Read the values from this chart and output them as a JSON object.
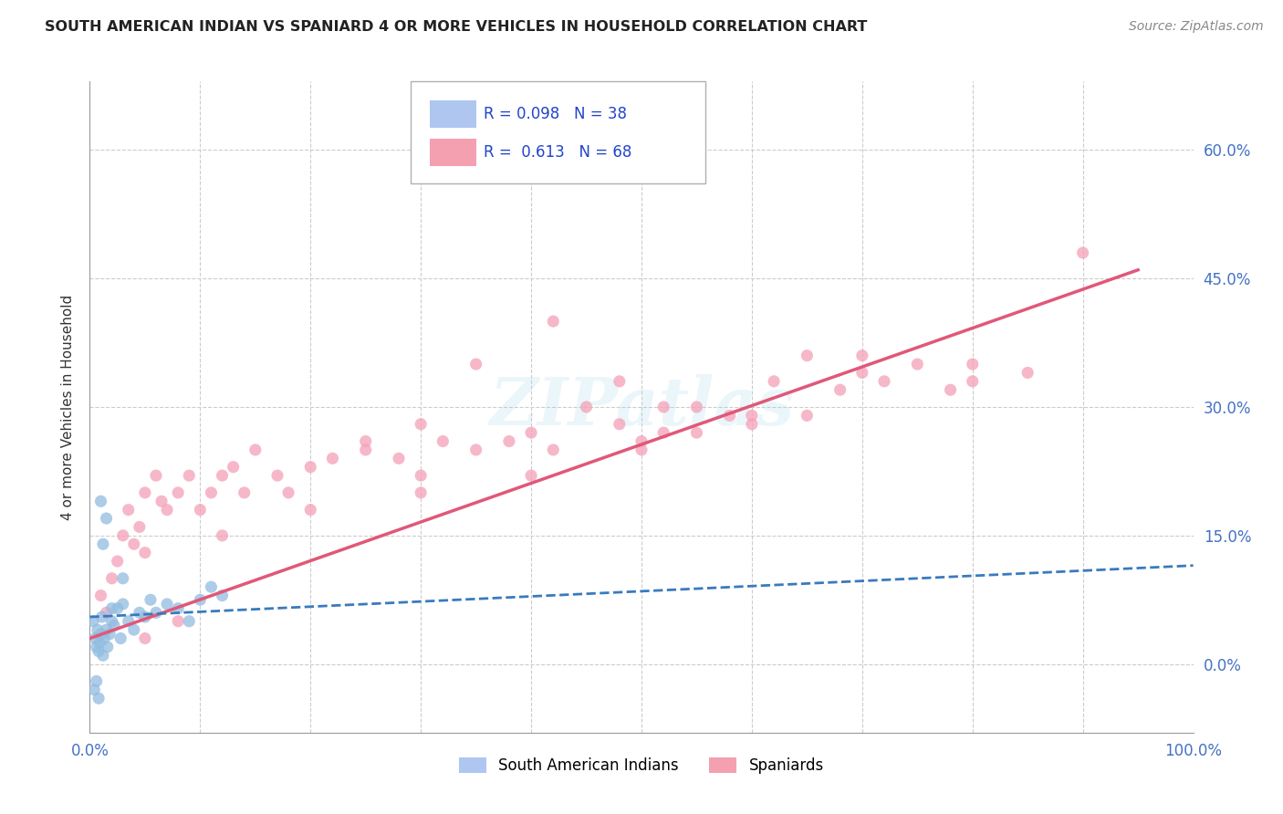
{
  "title": "SOUTH AMERICAN INDIAN VS SPANIARD 4 OR MORE VEHICLES IN HOUSEHOLD CORRELATION CHART",
  "source": "Source: ZipAtlas.com",
  "ylabel": "4 or more Vehicles in Household",
  "xlim": [
    0,
    100
  ],
  "ylim": [
    -8,
    68
  ],
  "ytick_vals": [
    0,
    15,
    30,
    45,
    60
  ],
  "ytick_labels": [
    "0.0%",
    "15.0%",
    "30.0%",
    "45.0%",
    "60.0%"
  ],
  "xtick_vals": [
    0,
    100
  ],
  "xtick_labels": [
    "0.0%",
    "100.0%"
  ],
  "blue_color": "#92bce0",
  "pink_color": "#f4a0b8",
  "blue_line_color": "#3a7abf",
  "pink_line_color": "#e05878",
  "blue_r": 0.098,
  "pink_r": 0.613,
  "blue_n": 38,
  "pink_n": 68,
  "watermark": "ZIPatlas",
  "legend_label1": "South American Indians",
  "legend_label2": "Spaniards",
  "background_color": "#ffffff",
  "grid_color": "#cccccc",
  "title_color": "#222222",
  "axis_label_color": "#4472c4",
  "blue_scatter_x": [
    0.3,
    0.5,
    0.6,
    0.7,
    0.8,
    0.9,
    1.0,
    1.1,
    1.2,
    1.3,
    1.5,
    1.6,
    1.8,
    2.0,
    2.2,
    2.5,
    2.8,
    3.0,
    3.5,
    4.0,
    4.5,
    5.0,
    5.5,
    6.0,
    7.0,
    8.0,
    9.0,
    10.0,
    11.0,
    12.0,
    0.4,
    0.6,
    0.8,
    1.0,
    1.5,
    2.0,
    1.2,
    3.0
  ],
  "blue_scatter_y": [
    5.0,
    3.0,
    2.0,
    4.0,
    1.5,
    2.5,
    3.5,
    5.5,
    1.0,
    3.0,
    4.0,
    2.0,
    3.5,
    5.0,
    4.5,
    6.5,
    3.0,
    7.0,
    5.0,
    4.0,
    6.0,
    5.5,
    7.5,
    6.0,
    7.0,
    6.5,
    5.0,
    7.5,
    9.0,
    8.0,
    -3.0,
    -2.0,
    -4.0,
    19.0,
    17.0,
    6.5,
    14.0,
    10.0
  ],
  "pink_scatter_x": [
    1.0,
    1.5,
    2.0,
    2.5,
    3.0,
    3.5,
    4.0,
    4.5,
    5.0,
    5.0,
    6.0,
    6.5,
    7.0,
    8.0,
    9.0,
    10.0,
    11.0,
    12.0,
    13.0,
    14.0,
    15.0,
    17.0,
    18.0,
    20.0,
    22.0,
    25.0,
    28.0,
    30.0,
    30.0,
    32.0,
    35.0,
    38.0,
    40.0,
    42.0,
    45.0,
    48.0,
    50.0,
    52.0,
    55.0,
    58.0,
    60.0,
    62.0,
    65.0,
    68.0,
    70.0,
    72.0,
    75.0,
    78.0,
    80.0,
    85.0,
    90.0,
    5.0,
    8.0,
    12.0,
    20.0,
    30.0,
    40.0,
    50.0,
    60.0,
    70.0,
    80.0,
    48.0,
    52.0,
    25.0,
    35.0,
    55.0,
    65.0,
    42.0
  ],
  "pink_scatter_y": [
    8.0,
    6.0,
    10.0,
    12.0,
    15.0,
    18.0,
    14.0,
    16.0,
    13.0,
    20.0,
    22.0,
    19.0,
    18.0,
    20.0,
    22.0,
    18.0,
    20.0,
    22.0,
    23.0,
    20.0,
    25.0,
    22.0,
    20.0,
    23.0,
    24.0,
    26.0,
    24.0,
    28.0,
    22.0,
    26.0,
    25.0,
    26.0,
    27.0,
    25.0,
    30.0,
    28.0,
    26.0,
    30.0,
    27.0,
    29.0,
    28.0,
    33.0,
    36.0,
    32.0,
    34.0,
    33.0,
    35.0,
    32.0,
    33.0,
    34.0,
    48.0,
    3.0,
    5.0,
    15.0,
    18.0,
    20.0,
    22.0,
    25.0,
    29.0,
    36.0,
    35.0,
    33.0,
    27.0,
    25.0,
    35.0,
    30.0,
    29.0,
    40.0
  ],
  "blue_trend_x0": 0,
  "blue_trend_x1": 100,
  "blue_trend_y0": 5.5,
  "blue_trend_y1": 11.5,
  "pink_trend_x0": 0,
  "pink_trend_x1": 95,
  "pink_trend_y0": 3.0,
  "pink_trend_y1": 46.0
}
